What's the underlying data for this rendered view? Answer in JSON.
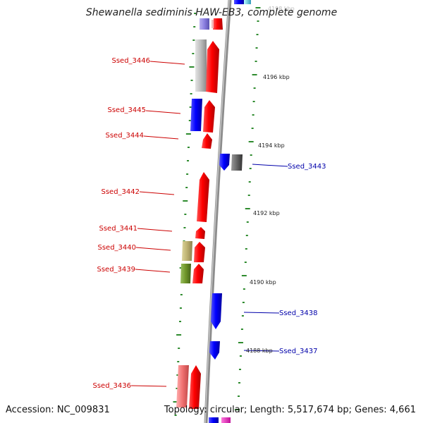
{
  "title": "Shewanella sediminis HAW-EB3, complete genome",
  "accession": "Accession: NC_009831",
  "summary": "Topology: circular; Length: 5,517,674 bp; Genes: 4,661",
  "colors": {
    "forward": "#ee0000",
    "reverse": "#1010ee",
    "label_forward": "#cc0000",
    "label_reverse": "#0000aa",
    "tick": "#2e8b2e",
    "backbone": "#888888"
  },
  "scale_labels": [
    {
      "text": "4198 kbp"
    },
    {
      "text": "4196 kbp"
    },
    {
      "text": "4194 kbp"
    },
    {
      "text": "4192 kbp"
    },
    {
      "text": "4190 kbp"
    },
    {
      "text": "4188 kbp"
    }
  ],
  "genes": [
    {
      "id": "Ssed_3446",
      "strand": "forward",
      "color": "#ee0000"
    },
    {
      "id": "Ssed_3445",
      "strand": "forward",
      "color": "#ee0000"
    },
    {
      "id": "Ssed_3444",
      "strand": "forward",
      "color": "#ee0000"
    },
    {
      "id": "Ssed_3443",
      "strand": "reverse",
      "color": "#1010ee"
    },
    {
      "id": "Ssed_3442",
      "strand": "forward",
      "color": "#ee0000"
    },
    {
      "id": "Ssed_3441",
      "strand": "forward",
      "color": "#ee0000"
    },
    {
      "id": "Ssed_3440",
      "strand": "forward",
      "color": "#ee0000"
    },
    {
      "id": "Ssed_3439",
      "strand": "forward",
      "color": "#ee0000"
    },
    {
      "id": "Ssed_3438",
      "strand": "reverse",
      "color": "#1010ee"
    },
    {
      "id": "Ssed_3437",
      "strand": "reverse",
      "color": "#1010ee"
    },
    {
      "id": "Ssed_3436",
      "strand": "forward",
      "color": "#ee0000"
    }
  ]
}
